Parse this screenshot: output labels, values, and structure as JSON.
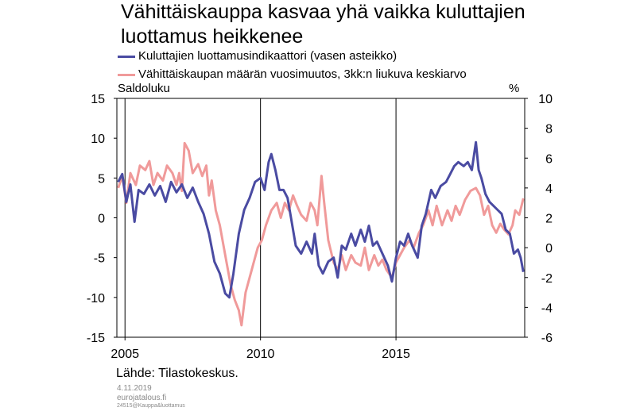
{
  "title": "Vähittäiskauppa kasvaa yhä vaikka kuluttajien luottamus heikkenee",
  "unit_left": "Saldoluku",
  "unit_right": "%",
  "source": "Lähde: Tilastokeskus.",
  "date": "4.11.2019",
  "site": "eurojatalous.fi",
  "code": "24515@Kauppa&luottamus",
  "chart_data": {
    "type": "line",
    "xlim": [
      2004.7,
      2019.75
    ],
    "x_ticks": [
      2005,
      2010,
      2015
    ],
    "x_tick_labels": [
      "2005",
      "2010",
      "2015"
    ],
    "ylim_left": [
      -15,
      15
    ],
    "y_ticks_left": [
      -15,
      -10,
      -5,
      0,
      5,
      10,
      15
    ],
    "y_tick_labels_left": [
      "-15",
      "-10",
      "-5",
      "0",
      "5",
      "10",
      "15"
    ],
    "ylim_right": [
      -6,
      10
    ],
    "y_ticks_right": [
      -6,
      -4,
      -2,
      0,
      2,
      4,
      6,
      8,
      10
    ],
    "y_tick_labels_right": [
      "-6",
      "-4",
      "-2",
      "0",
      "2",
      "4",
      "6",
      "8",
      "10"
    ],
    "grid": "vertical only",
    "legend": "top-left",
    "series": [
      {
        "name": "Kuluttajien luottamusindikaattori (vasen asteikko)",
        "axis": "left",
        "color": "#4a4ba2",
        "points": [
          [
            2004.75,
            4.5
          ],
          [
            2004.9,
            5.5
          ],
          [
            2005.05,
            2.0
          ],
          [
            2005.2,
            4.2
          ],
          [
            2005.35,
            -0.5
          ],
          [
            2005.5,
            3.5
          ],
          [
            2005.7,
            3.0
          ],
          [
            2005.9,
            4.2
          ],
          [
            2006.1,
            2.8
          ],
          [
            2006.3,
            4.0
          ],
          [
            2006.5,
            2.0
          ],
          [
            2006.7,
            4.5
          ],
          [
            2006.9,
            3.2
          ],
          [
            2007.1,
            4.2
          ],
          [
            2007.3,
            2.5
          ],
          [
            2007.5,
            3.8
          ],
          [
            2007.7,
            2.0
          ],
          [
            2007.9,
            0.5
          ],
          [
            2008.1,
            -2.0
          ],
          [
            2008.3,
            -5.5
          ],
          [
            2008.5,
            -7.0
          ],
          [
            2008.7,
            -9.5
          ],
          [
            2008.85,
            -10.0
          ],
          [
            2009.0,
            -7.0
          ],
          [
            2009.2,
            -2.0
          ],
          [
            2009.4,
            1.0
          ],
          [
            2009.6,
            2.5
          ],
          [
            2009.8,
            4.5
          ],
          [
            2010.0,
            5.0
          ],
          [
            2010.15,
            3.5
          ],
          [
            2010.3,
            7.0
          ],
          [
            2010.4,
            8.0
          ],
          [
            2010.55,
            6.0
          ],
          [
            2010.7,
            3.5
          ],
          [
            2010.85,
            3.5
          ],
          [
            2011.0,
            2.5
          ],
          [
            2011.1,
            0.5
          ],
          [
            2011.3,
            -3.5
          ],
          [
            2011.5,
            -4.5
          ],
          [
            2011.7,
            -3.0
          ],
          [
            2011.9,
            -4.5
          ],
          [
            2012.0,
            -2.0
          ],
          [
            2012.15,
            -6.0
          ],
          [
            2012.3,
            -7.0
          ],
          [
            2012.5,
            -5.5
          ],
          [
            2012.7,
            -5.0
          ],
          [
            2012.85,
            -7.5
          ],
          [
            2013.0,
            -3.5
          ],
          [
            2013.15,
            -4.0
          ],
          [
            2013.35,
            -2.0
          ],
          [
            2013.5,
            -3.5
          ],
          [
            2013.7,
            -1.5
          ],
          [
            2013.85,
            -3.0
          ],
          [
            2014.0,
            -1.0
          ],
          [
            2014.15,
            -3.5
          ],
          [
            2014.3,
            -3.0
          ],
          [
            2014.5,
            -4.5
          ],
          [
            2014.7,
            -6.0
          ],
          [
            2014.85,
            -8.0
          ],
          [
            2015.0,
            -5.0
          ],
          [
            2015.15,
            -3.0
          ],
          [
            2015.3,
            -3.5
          ],
          [
            2015.45,
            -2.0
          ],
          [
            2015.6,
            -3.5
          ],
          [
            2015.8,
            -5.0
          ],
          [
            2015.95,
            -1.0
          ],
          [
            2016.1,
            0.5
          ],
          [
            2016.3,
            3.5
          ],
          [
            2016.45,
            2.5
          ],
          [
            2016.65,
            4.0
          ],
          [
            2016.85,
            4.5
          ],
          [
            2017.0,
            5.5
          ],
          [
            2017.15,
            6.5
          ],
          [
            2017.3,
            7.0
          ],
          [
            2017.5,
            6.5
          ],
          [
            2017.65,
            7.0
          ],
          [
            2017.8,
            6.0
          ],
          [
            2017.95,
            9.5
          ],
          [
            2018.05,
            6.0
          ],
          [
            2018.15,
            5.0
          ],
          [
            2018.3,
            3.0
          ],
          [
            2018.45,
            2.0
          ],
          [
            2018.6,
            1.5
          ],
          [
            2018.75,
            1.0
          ],
          [
            2018.9,
            0.5
          ],
          [
            2019.05,
            -1.5
          ],
          [
            2019.2,
            -2.0
          ],
          [
            2019.35,
            -4.5
          ],
          [
            2019.5,
            -4.0
          ],
          [
            2019.6,
            -5.0
          ],
          [
            2019.7,
            -6.8
          ]
        ]
      },
      {
        "name": "Vähittäiskaupan määrän vuosimuutos, 3kk:n liukuva keskiarvo",
        "axis": "right",
        "color": "#f09a9a",
        "points": [
          [
            2004.75,
            4.0
          ],
          [
            2004.9,
            4.8
          ],
          [
            2005.05,
            3.0
          ],
          [
            2005.2,
            5.0
          ],
          [
            2005.4,
            4.2
          ],
          [
            2005.55,
            5.5
          ],
          [
            2005.75,
            5.2
          ],
          [
            2005.9,
            5.8
          ],
          [
            2006.05,
            4.2
          ],
          [
            2006.2,
            5.0
          ],
          [
            2006.4,
            4.5
          ],
          [
            2006.55,
            5.5
          ],
          [
            2006.75,
            5.0
          ],
          [
            2006.9,
            4.2
          ],
          [
            2007.0,
            5.0
          ],
          [
            2007.1,
            3.8
          ],
          [
            2007.2,
            7.0
          ],
          [
            2007.35,
            6.5
          ],
          [
            2007.5,
            5.0
          ],
          [
            2007.7,
            5.6
          ],
          [
            2007.85,
            4.8
          ],
          [
            2008.0,
            5.5
          ],
          [
            2008.1,
            3.5
          ],
          [
            2008.2,
            4.5
          ],
          [
            2008.35,
            2.5
          ],
          [
            2008.5,
            1.5
          ],
          [
            2008.65,
            0.0
          ],
          [
            2008.75,
            -1.0
          ],
          [
            2008.9,
            -2.5
          ],
          [
            2009.05,
            -3.5
          ],
          [
            2009.2,
            -4.2
          ],
          [
            2009.3,
            -5.2
          ],
          [
            2009.45,
            -3.0
          ],
          [
            2009.6,
            -2.0
          ],
          [
            2009.75,
            -1.0
          ],
          [
            2009.9,
            0.0
          ],
          [
            2010.05,
            0.5
          ],
          [
            2010.2,
            1.5
          ],
          [
            2010.4,
            2.5
          ],
          [
            2010.6,
            3.0
          ],
          [
            2010.75,
            2.0
          ],
          [
            2010.9,
            3.0
          ],
          [
            2011.05,
            2.5
          ],
          [
            2011.2,
            3.5
          ],
          [
            2011.35,
            2.8
          ],
          [
            2011.5,
            2.2
          ],
          [
            2011.7,
            1.8
          ],
          [
            2011.85,
            3.0
          ],
          [
            2012.0,
            2.5
          ],
          [
            2012.1,
            1.5
          ],
          [
            2012.25,
            4.8
          ],
          [
            2012.35,
            3.0
          ],
          [
            2012.5,
            0.5
          ],
          [
            2012.7,
            -1.0
          ],
          [
            2012.85,
            -1.5
          ],
          [
            2013.0,
            -0.5
          ],
          [
            2013.15,
            -1.5
          ],
          [
            2013.35,
            -0.5
          ],
          [
            2013.5,
            -1.0
          ],
          [
            2013.7,
            -1.2
          ],
          [
            2013.85,
            0.0
          ],
          [
            2014.0,
            -1.5
          ],
          [
            2014.2,
            -0.5
          ],
          [
            2014.35,
            -1.2
          ],
          [
            2014.5,
            -0.8
          ],
          [
            2014.65,
            -1.5
          ],
          [
            2014.85,
            -2.0
          ],
          [
            2015.0,
            -1.0
          ],
          [
            2015.15,
            -0.5
          ],
          [
            2015.3,
            0.0
          ],
          [
            2015.5,
            0.5
          ],
          [
            2015.65,
            0.0
          ],
          [
            2015.85,
            1.0
          ],
          [
            2016.0,
            1.5
          ],
          [
            2016.2,
            2.5
          ],
          [
            2016.35,
            1.5
          ],
          [
            2016.5,
            2.8
          ],
          [
            2016.7,
            1.5
          ],
          [
            2016.9,
            2.5
          ],
          [
            2017.05,
            1.8
          ],
          [
            2017.2,
            2.8
          ],
          [
            2017.35,
            2.2
          ],
          [
            2017.55,
            3.2
          ],
          [
            2017.75,
            3.8
          ],
          [
            2017.95,
            4.0
          ],
          [
            2018.1,
            3.5
          ],
          [
            2018.25,
            2.2
          ],
          [
            2018.4,
            2.8
          ],
          [
            2018.55,
            1.5
          ],
          [
            2018.7,
            1.0
          ],
          [
            2018.85,
            1.6
          ],
          [
            2019.0,
            1.2
          ],
          [
            2019.15,
            0.9
          ],
          [
            2019.3,
            1.5
          ],
          [
            2019.4,
            2.5
          ],
          [
            2019.55,
            2.2
          ],
          [
            2019.7,
            3.3
          ]
        ]
      }
    ]
  }
}
